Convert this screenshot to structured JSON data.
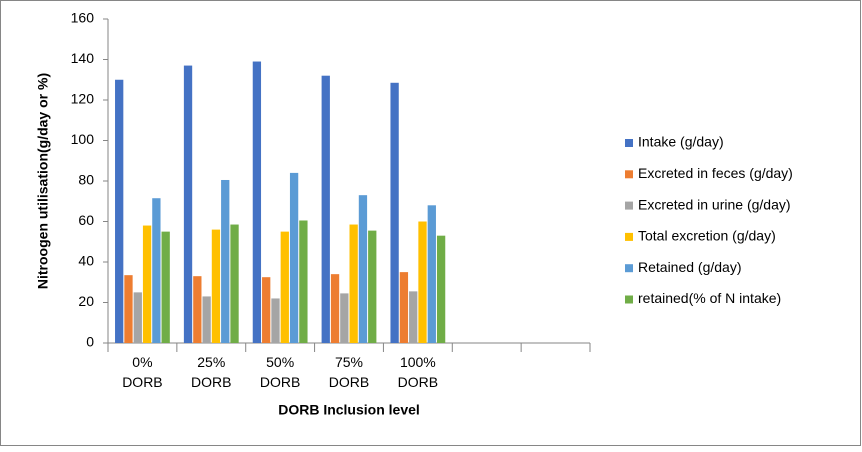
{
  "chart_data": {
    "type": "bar",
    "y_label": "Nitroogen utilisation(g/day or %)",
    "x_label": "DORB Inclusion level",
    "categories": [
      "0% DORB",
      "25% DORB",
      "50% DORB",
      "75% DORB",
      "100% DORB",
      null,
      null
    ],
    "series": [
      {
        "name": "Intake (g/day)",
        "color": "#4472c4",
        "values": [
          130,
          137,
          139,
          132,
          128.5,
          null,
          null
        ]
      },
      {
        "name": "Excreted in feces (g/day)",
        "color": "#ed7d31",
        "values": [
          33.5,
          33,
          32.5,
          34,
          35,
          null,
          null
        ]
      },
      {
        "name": "Excreted in urine (g/day)",
        "color": "#a5a5a5",
        "values": [
          25,
          23,
          22,
          24.5,
          25.5,
          null,
          null
        ]
      },
      {
        "name": "Total  excretion (g/day)",
        "color": "#ffc000",
        "values": [
          58,
          56,
          55,
          58.5,
          60,
          null,
          null
        ]
      },
      {
        "name": "Retained (g/day)",
        "color": "#5b9bd5",
        "values": [
          71.5,
          80.5,
          84,
          73,
          68,
          null,
          null
        ]
      },
      {
        "name": "retained(% of N intake)",
        "color": "#70ad47",
        "values": [
          55,
          58.5,
          60.5,
          55.5,
          53,
          null,
          null
        ]
      }
    ],
    "ylim": [
      0,
      160
    ],
    "yticks": [
      0,
      20,
      40,
      60,
      80,
      100,
      120,
      140,
      160
    ],
    "grid": false,
    "legend": "right"
  }
}
